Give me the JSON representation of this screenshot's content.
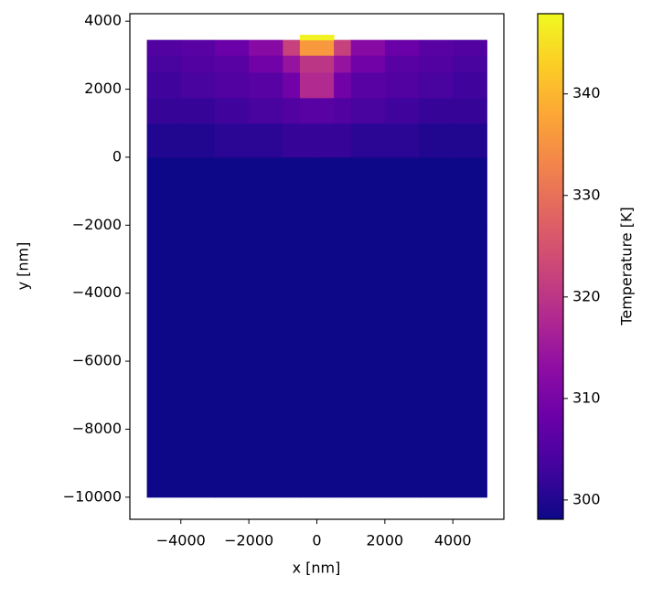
{
  "chart_data": {
    "type": "heatmap",
    "xlabel": "x [nm]",
    "ylabel": "y [nm]",
    "xlim": [
      -5500,
      5500
    ],
    "ylim": [
      -10650,
      4220
    ],
    "xticks": [
      {
        "value": -4000,
        "label": "−4000"
      },
      {
        "value": -2000,
        "label": "−2000"
      },
      0,
      2000,
      4000
    ],
    "yticks": [
      {
        "value": -10000,
        "label": "−10000"
      },
      {
        "value": -8000,
        "label": "−8000"
      },
      {
        "value": -6000,
        "label": "−6000"
      },
      {
        "value": -4000,
        "label": "−4000"
      },
      {
        "value": -2000,
        "label": "−2000"
      },
      0,
      2000,
      4000
    ],
    "x_bins": [
      -5000,
      -4000,
      -3000,
      -2000,
      -1000,
      -500,
      0,
      500,
      1000,
      2000,
      3000,
      4000,
      5000
    ],
    "y_bins": [
      -10000,
      -2000,
      0,
      1000,
      1750,
      2500,
      3000,
      3450,
      3600
    ],
    "values": [
      [
        298,
        298,
        298,
        298,
        298,
        298,
        298,
        298,
        298,
        298,
        298,
        298
      ],
      [
        298,
        298,
        298,
        298,
        298,
        298,
        298,
        298,
        298,
        298,
        298,
        298
      ],
      [
        300,
        300,
        301,
        301,
        302,
        302,
        302,
        302,
        301,
        301,
        300,
        300
      ],
      [
        302,
        302,
        303,
        304,
        305,
        306,
        306,
        305,
        304,
        303,
        302,
        302
      ],
      [
        303,
        304,
        305,
        306,
        309,
        318,
        318,
        309,
        306,
        305,
        304,
        303
      ],
      [
        304,
        305,
        306,
        309,
        314,
        320,
        320,
        314,
        309,
        306,
        305,
        304
      ],
      [
        305,
        306,
        308,
        312,
        322,
        336,
        336,
        322,
        312,
        308,
        306,
        305
      ],
      [
        null,
        null,
        null,
        null,
        null,
        347,
        347,
        null,
        null,
        null,
        null,
        null
      ]
    ],
    "colormap": "plasma",
    "colorbar": {
      "label": "Temperature [K]",
      "lim": [
        298.1,
        347.9
      ],
      "ticks": [
        300,
        310,
        320,
        330,
        340
      ]
    }
  }
}
